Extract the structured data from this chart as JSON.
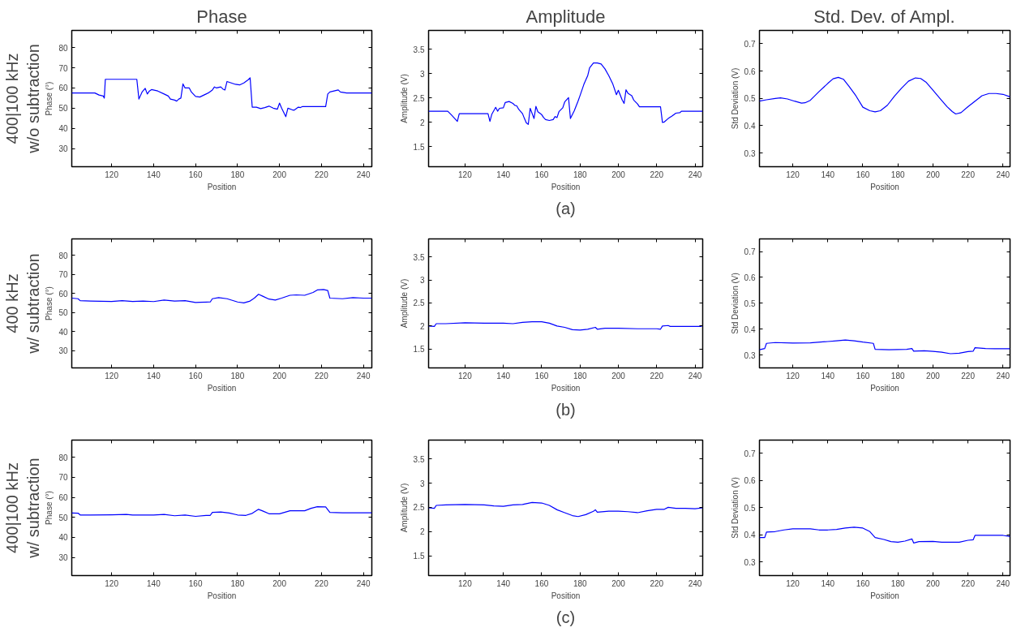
{
  "chart_data": [
    {
      "type": "line",
      "title": "Phase",
      "xlabel": "Position",
      "ylabel": "Phase (°)",
      "color": "#0000ff",
      "grid": false,
      "line_style": "solid",
      "annotations": [
        "400|100 kHz",
        "w/o subtraction"
      ],
      "xlim": [
        101,
        244
      ],
      "xticks": [
        120,
        140,
        160,
        180,
        200,
        220,
        240
      ],
      "ylim": [
        21,
        88.5
      ],
      "yticks": [
        30,
        40,
        50,
        60,
        70,
        80
      ],
      "x": [
        101,
        112,
        114,
        116,
        116.5,
        117,
        132,
        133,
        134.5,
        136,
        137,
        138,
        139,
        142,
        145,
        147,
        148,
        150,
        151,
        152,
        153,
        154,
        155,
        157,
        158,
        160,
        162,
        164,
        166,
        168,
        169,
        170,
        172,
        173,
        174,
        175,
        177,
        179,
        181,
        183,
        185,
        186,
        187,
        189,
        191,
        193,
        195,
        197,
        199,
        200,
        201,
        203,
        204,
        206,
        207,
        209,
        210,
        211,
        222,
        223,
        224,
        226,
        228,
        229,
        232,
        244
      ],
      "values": [
        57.5,
        57.5,
        56.5,
        56,
        55,
        64.3,
        64.3,
        54.5,
        58,
        59.8,
        57,
        58.5,
        59.2,
        58.5,
        57,
        56,
        54.5,
        54,
        53.5,
        54.5,
        55,
        62,
        60,
        60,
        58,
        55.8,
        55.5,
        56.5,
        57.5,
        59,
        60.5,
        60,
        60.5,
        59.5,
        59,
        63.2,
        62.5,
        61.8,
        61.5,
        62.5,
        64,
        65,
        50.5,
        50.5,
        49.8,
        50.3,
        51,
        50,
        49.5,
        52.5,
        50,
        45.8,
        50,
        49.2,
        49,
        50.5,
        50.3,
        50.8,
        50.8,
        57,
        58,
        58.5,
        59,
        58,
        57.5,
        57.5
      ]
    },
    {
      "type": "line",
      "title": "Amplitude",
      "xlabel": "Position",
      "ylabel": "Amplitude (V)",
      "color": "#0000ff",
      "grid": false,
      "line_style": "solid",
      "annotations": [
        "(a)"
      ],
      "xlim": [
        101,
        244
      ],
      "xticks": [
        120,
        140,
        160,
        180,
        200,
        220,
        240
      ],
      "ylim": [
        1.09,
        3.89
      ],
      "yticks": [
        1.5,
        2,
        2.5,
        3,
        3.5
      ],
      "x": [
        101,
        111,
        113,
        116,
        117,
        132,
        133,
        134,
        136,
        137,
        138,
        140,
        141,
        143,
        145,
        146,
        147,
        148,
        150,
        151,
        152,
        153,
        154,
        156,
        157,
        158,
        160,
        161,
        162,
        164,
        166,
        167,
        168,
        169,
        171,
        172,
        174,
        175,
        177,
        179,
        180,
        182,
        184,
        185,
        187,
        189,
        191,
        193,
        195,
        197,
        199,
        200,
        202,
        203,
        204,
        205,
        207,
        208,
        210,
        211,
        222,
        223,
        224,
        226,
        228,
        230,
        232,
        233,
        244
      ],
      "values": [
        2.23,
        2.23,
        2.15,
        2.02,
        2.18,
        2.18,
        2.02,
        2.17,
        2.31,
        2.23,
        2.29,
        2.3,
        2.41,
        2.43,
        2.39,
        2.35,
        2.34,
        2.27,
        2.18,
        2.08,
        1.99,
        1.96,
        2.29,
        2.08,
        2.33,
        2.22,
        2.16,
        2.1,
        2.06,
        2.04,
        2.06,
        2.12,
        2.1,
        2.22,
        2.3,
        2.42,
        2.51,
        2.08,
        2.24,
        2.44,
        2.55,
        2.78,
        2.96,
        3.12,
        3.22,
        3.22,
        3.2,
        3.1,
        2.96,
        2.8,
        2.57,
        2.66,
        2.46,
        2.39,
        2.67,
        2.6,
        2.55,
        2.46,
        2.38,
        2.32,
        2.32,
        2.0,
        2.01,
        2.08,
        2.13,
        2.19,
        2.2,
        2.23,
        2.23
      ]
    },
    {
      "type": "line",
      "title": "Std. Dev. of Ampl.",
      "xlabel": "Position",
      "ylabel": "Std Deviation (V)",
      "color": "#0000ff",
      "grid": false,
      "line_style": "solid",
      "xlim": [
        101,
        244
      ],
      "xticks": [
        120,
        140,
        160,
        180,
        200,
        220,
        240
      ],
      "ylim": [
        0.25,
        0.749
      ],
      "yticks": [
        0.3,
        0.4,
        0.5,
        0.6,
        0.7
      ],
      "x": [
        101,
        105,
        110,
        113,
        117,
        121,
        125,
        127,
        130,
        135,
        140,
        143,
        146,
        149,
        152,
        156,
        160,
        164,
        167,
        170,
        174,
        178,
        182,
        186,
        190,
        193,
        196,
        200,
        204,
        208,
        211,
        213,
        216,
        220,
        224,
        228,
        232,
        236,
        240,
        244
      ],
      "values": [
        0.49,
        0.495,
        0.5,
        0.502,
        0.498,
        0.49,
        0.483,
        0.484,
        0.493,
        0.525,
        0.555,
        0.572,
        0.577,
        0.57,
        0.545,
        0.51,
        0.468,
        0.455,
        0.451,
        0.455,
        0.475,
        0.508,
        0.537,
        0.563,
        0.575,
        0.573,
        0.56,
        0.53,
        0.5,
        0.47,
        0.452,
        0.443,
        0.448,
        0.47,
        0.49,
        0.51,
        0.518,
        0.518,
        0.515,
        0.506
      ]
    },
    {
      "type": "line",
      "xlabel": "Position",
      "ylabel": "Phase (°)",
      "color": "#0000ff",
      "grid": false,
      "line_style": "solid",
      "annotations": [
        "400 kHz",
        "w/ subtraction"
      ],
      "xlim": [
        101,
        244
      ],
      "xticks": [
        120,
        140,
        160,
        180,
        200,
        220,
        240
      ],
      "ylim": [
        21,
        88.5
      ],
      "yticks": [
        30,
        40,
        50,
        60,
        70,
        80
      ],
      "x": [
        101,
        104,
        105,
        110,
        120,
        125,
        130,
        135,
        140,
        145,
        150,
        155,
        160,
        162,
        167,
        168,
        171,
        175,
        180,
        183,
        186,
        188,
        190,
        192,
        195,
        198,
        201,
        205,
        208,
        212,
        216,
        218,
        221,
        223,
        224,
        230,
        235,
        240,
        244
      ],
      "values": [
        57.5,
        57.2,
        56.2,
        56,
        55.8,
        56.2,
        55.8,
        56,
        55.7,
        56.5,
        56,
        56.2,
        55.2,
        55.3,
        55.5,
        57.2,
        57.8,
        57.2,
        55.5,
        55,
        56,
        57.5,
        59.5,
        58.5,
        57,
        56.5,
        57.5,
        59,
        59.2,
        59,
        60.5,
        61.8,
        62,
        61.5,
        57.5,
        57.2,
        57.8,
        57.5,
        57.5
      ]
    },
    {
      "type": "line",
      "xlabel": "Position",
      "ylabel": "Amplitude (V)",
      "color": "#0000ff",
      "grid": false,
      "line_style": "solid",
      "annotations": [
        "(b)"
      ],
      "xlim": [
        101,
        244
      ],
      "xticks": [
        120,
        140,
        160,
        180,
        200,
        220,
        240
      ],
      "ylim": [
        1.09,
        3.89
      ],
      "yticks": [
        1.5,
        2,
        2.5,
        3,
        3.5
      ],
      "x": [
        101,
        104,
        105,
        110,
        120,
        130,
        140,
        145,
        150,
        155,
        160,
        164,
        168,
        172,
        176,
        180,
        184,
        188,
        189,
        193,
        200,
        210,
        220,
        222,
        223,
        226,
        227,
        235,
        243,
        244
      ],
      "values": [
        2.0,
        1.99,
        2.05,
        2.05,
        2.07,
        2.06,
        2.06,
        2.05,
        2.08,
        2.09,
        2.09,
        2.06,
        2.0,
        1.97,
        1.92,
        1.91,
        1.93,
        1.97,
        1.93,
        1.95,
        1.95,
        1.94,
        1.94,
        1.93,
        2.0,
        2.01,
        1.99,
        1.99,
        1.99,
        2.01
      ]
    },
    {
      "type": "line",
      "xlabel": "Position",
      "ylabel": "Std Deviation (V)",
      "color": "#0000ff",
      "grid": false,
      "line_style": "solid",
      "xlim": [
        101,
        244
      ],
      "xticks": [
        120,
        140,
        160,
        180,
        200,
        220,
        240
      ],
      "ylim": [
        0.25,
        0.749
      ],
      "yticks": [
        0.3,
        0.4,
        0.5,
        0.6,
        0.7
      ],
      "x": [
        101,
        104,
        105,
        110,
        120,
        130,
        140,
        145,
        150,
        155,
        160,
        166,
        167,
        175,
        185,
        188,
        189,
        195,
        200,
        205,
        210,
        215,
        220,
        223,
        224,
        230,
        235,
        244
      ],
      "values": [
        0.32,
        0.325,
        0.345,
        0.348,
        0.346,
        0.347,
        0.352,
        0.355,
        0.358,
        0.355,
        0.35,
        0.345,
        0.322,
        0.32,
        0.322,
        0.325,
        0.315,
        0.316,
        0.314,
        0.311,
        0.305,
        0.307,
        0.313,
        0.315,
        0.328,
        0.325,
        0.324,
        0.324
      ]
    },
    {
      "type": "line",
      "xlabel": "Position",
      "ylabel": "Phase (°)",
      "color": "#0000ff",
      "grid": false,
      "line_style": "solid",
      "annotations": [
        "400|100 kHz",
        "w/ subtraction"
      ],
      "xlim": [
        101,
        244
      ],
      "xticks": [
        120,
        140,
        160,
        180,
        200,
        220,
        240
      ],
      "ylim": [
        21,
        88.5
      ],
      "yticks": [
        30,
        40,
        50,
        60,
        70,
        80
      ],
      "x": [
        101,
        104,
        105,
        110,
        120,
        127,
        130,
        140,
        145,
        150,
        155,
        160,
        165,
        167,
        168,
        172,
        176,
        180,
        184,
        187,
        190,
        192,
        195,
        200,
        205,
        212,
        215,
        218,
        222,
        224,
        230,
        244
      ],
      "values": [
        52.2,
        52.1,
        51.2,
        51.2,
        51.3,
        51.5,
        51.2,
        51.2,
        51.5,
        50.8,
        51.2,
        50.5,
        51,
        51,
        52.5,
        52.7,
        52.2,
        51.2,
        51,
        52,
        54,
        53.2,
        51.8,
        51.8,
        53.3,
        53.3,
        54.5,
        55.3,
        55.2,
        52.5,
        52.3,
        52.3
      ]
    },
    {
      "type": "line",
      "xlabel": "Position",
      "ylabel": "Amplitude (V)",
      "color": "#0000ff",
      "grid": false,
      "line_style": "solid",
      "annotations": [
        "(c)"
      ],
      "xlim": [
        101,
        244
      ],
      "xticks": [
        120,
        140,
        160,
        180,
        200,
        220,
        240
      ],
      "ylim": [
        1.09,
        3.89
      ],
      "yticks": [
        1.5,
        2,
        2.5,
        3,
        3.5
      ],
      "x": [
        101,
        104,
        105,
        110,
        120,
        130,
        135,
        140,
        145,
        150,
        155,
        160,
        164,
        168,
        172,
        176,
        179,
        183,
        187,
        188,
        189,
        195,
        200,
        205,
        210,
        215,
        220,
        224,
        226,
        230,
        235,
        240,
        244
      ],
      "values": [
        2.49,
        2.48,
        2.54,
        2.55,
        2.56,
        2.55,
        2.53,
        2.52,
        2.55,
        2.56,
        2.6,
        2.59,
        2.54,
        2.45,
        2.39,
        2.33,
        2.31,
        2.35,
        2.42,
        2.45,
        2.4,
        2.42,
        2.42,
        2.41,
        2.39,
        2.43,
        2.46,
        2.46,
        2.5,
        2.48,
        2.48,
        2.47,
        2.49
      ]
    },
    {
      "type": "line",
      "xlabel": "Position",
      "ylabel": "Std Deviation (V)",
      "color": "#0000ff",
      "grid": false,
      "line_style": "solid",
      "xlim": [
        101,
        244
      ],
      "xticks": [
        120,
        140,
        160,
        180,
        200,
        220,
        240
      ],
      "ylim": [
        0.25,
        0.749
      ],
      "yticks": [
        0.3,
        0.4,
        0.5,
        0.6,
        0.7
      ],
      "x": [
        101,
        104,
        105,
        110,
        115,
        120,
        130,
        135,
        140,
        145,
        150,
        155,
        160,
        164,
        167,
        172,
        176,
        180,
        184,
        188,
        189,
        192,
        200,
        205,
        210,
        215,
        220,
        223,
        224,
        230,
        240,
        244
      ],
      "values": [
        0.39,
        0.39,
        0.41,
        0.412,
        0.418,
        0.422,
        0.422,
        0.418,
        0.418,
        0.42,
        0.425,
        0.428,
        0.425,
        0.412,
        0.39,
        0.383,
        0.375,
        0.373,
        0.377,
        0.385,
        0.37,
        0.375,
        0.376,
        0.373,
        0.373,
        0.373,
        0.38,
        0.382,
        0.398,
        0.398,
        0.398,
        0.394
      ]
    }
  ]
}
